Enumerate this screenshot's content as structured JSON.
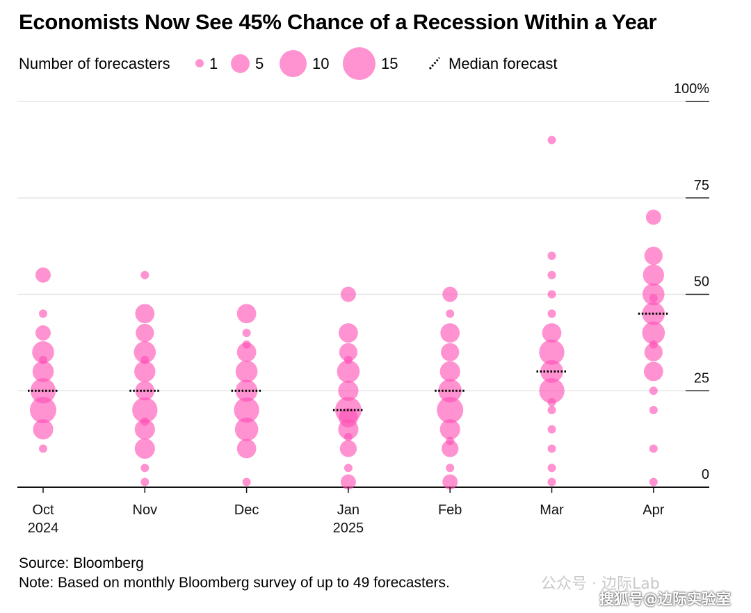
{
  "title": "Economists Now See 45% Chance of a Recession Within a Year",
  "legend": {
    "size_label": "Number of forecasters",
    "sizes": [
      {
        "value": 1,
        "label": "1"
      },
      {
        "value": 5,
        "label": "5"
      },
      {
        "value": 10,
        "label": "10"
      },
      {
        "value": 15,
        "label": "15"
      }
    ],
    "median_label": "Median forecast"
  },
  "colors": {
    "bubble": "#ff4fb4",
    "grid": "#e6e6e6",
    "median": "#000000"
  },
  "source": "Source: Bloomberg",
  "note": "Note: Based on monthly Bloomberg survey of up to 49 forecasters.",
  "watermark": {
    "line1": "公众号 · 边际Lab",
    "line2": "搜狐号@边际实验室"
  },
  "chart_data": {
    "type": "scatter",
    "y_axis": {
      "ticks": [
        0,
        25,
        50,
        75,
        100
      ],
      "tick_labels": [
        "0",
        "25",
        "50",
        "75",
        "100%"
      ],
      "ylim": [
        0,
        100
      ],
      "position": "right"
    },
    "x_axis": {
      "categories": [
        {
          "month": "Oct",
          "year": "2024"
        },
        {
          "month": "Nov",
          "year": ""
        },
        {
          "month": "Dec",
          "year": ""
        },
        {
          "month": "Jan",
          "year": "2025"
        },
        {
          "month": "Feb",
          "year": ""
        },
        {
          "month": "Mar",
          "year": ""
        },
        {
          "month": "Apr",
          "year": ""
        }
      ]
    },
    "grid": true,
    "series": [
      {
        "month": "Oct",
        "median": 25,
        "points": [
          {
            "y": 10,
            "n": 1
          },
          {
            "y": 15,
            "n": 6
          },
          {
            "y": 20,
            "n": 15
          },
          {
            "y": 25,
            "n": 13
          },
          {
            "y": 30,
            "n": 7
          },
          {
            "y": 33,
            "n": 1
          },
          {
            "y": 35,
            "n": 8
          },
          {
            "y": 40,
            "n": 2
          },
          {
            "y": 45,
            "n": 1
          },
          {
            "y": 55,
            "n": 2
          }
        ]
      },
      {
        "month": "Nov",
        "median": 25,
        "points": [
          {
            "y": 1,
            "n": 1
          },
          {
            "y": 5,
            "n": 1
          },
          {
            "y": 10,
            "n": 6
          },
          {
            "y": 15,
            "n": 6
          },
          {
            "y": 17,
            "n": 1
          },
          {
            "y": 20,
            "n": 13
          },
          {
            "y": 25,
            "n": 5
          },
          {
            "y": 30,
            "n": 7
          },
          {
            "y": 33,
            "n": 1
          },
          {
            "y": 35,
            "n": 8
          },
          {
            "y": 40,
            "n": 4
          },
          {
            "y": 45,
            "n": 5
          },
          {
            "y": 55,
            "n": 1
          }
        ]
      },
      {
        "month": "Dec",
        "median": 25,
        "points": [
          {
            "y": 1,
            "n": 1
          },
          {
            "y": 10,
            "n": 5
          },
          {
            "y": 15,
            "n": 10
          },
          {
            "y": 20,
            "n": 13
          },
          {
            "y": 25,
            "n": 8
          },
          {
            "y": 30,
            "n": 8
          },
          {
            "y": 35,
            "n": 5
          },
          {
            "y": 37,
            "n": 1
          },
          {
            "y": 40,
            "n": 1
          },
          {
            "y": 45,
            "n": 5
          }
        ]
      },
      {
        "month": "Jan",
        "median": 20,
        "points": [
          {
            "y": 1,
            "n": 2
          },
          {
            "y": 5,
            "n": 1
          },
          {
            "y": 10,
            "n": 3
          },
          {
            "y": 13,
            "n": 1
          },
          {
            "y": 15,
            "n": 6
          },
          {
            "y": 18,
            "n": 5
          },
          {
            "y": 20,
            "n": 15
          },
          {
            "y": 25,
            "n": 6
          },
          {
            "y": 30,
            "n": 9
          },
          {
            "y": 33,
            "n": 1
          },
          {
            "y": 35,
            "n": 4
          },
          {
            "y": 40,
            "n": 5
          },
          {
            "y": 50,
            "n": 2
          }
        ]
      },
      {
        "month": "Feb",
        "median": 25,
        "points": [
          {
            "y": 1,
            "n": 2
          },
          {
            "y": 5,
            "n": 1
          },
          {
            "y": 10,
            "n": 3
          },
          {
            "y": 12,
            "n": 1
          },
          {
            "y": 15,
            "n": 6
          },
          {
            "y": 20,
            "n": 15
          },
          {
            "y": 25,
            "n": 10
          },
          {
            "y": 30,
            "n": 6
          },
          {
            "y": 35,
            "n": 4
          },
          {
            "y": 40,
            "n": 5
          },
          {
            "y": 45,
            "n": 1
          },
          {
            "y": 50,
            "n": 2
          }
        ]
      },
      {
        "month": "Mar",
        "median": 30,
        "points": [
          {
            "y": 1,
            "n": 1
          },
          {
            "y": 5,
            "n": 1
          },
          {
            "y": 10,
            "n": 1
          },
          {
            "y": 15,
            "n": 1
          },
          {
            "y": 20,
            "n": 1
          },
          {
            "y": 22,
            "n": 1
          },
          {
            "y": 25,
            "n": 13
          },
          {
            "y": 30,
            "n": 9
          },
          {
            "y": 35,
            "n": 13
          },
          {
            "y": 40,
            "n": 5
          },
          {
            "y": 45,
            "n": 1
          },
          {
            "y": 50,
            "n": 1
          },
          {
            "y": 55,
            "n": 1
          },
          {
            "y": 60,
            "n": 1
          },
          {
            "y": 90,
            "n": 1
          }
        ]
      },
      {
        "month": "Apr",
        "median": 45,
        "points": [
          {
            "y": 1,
            "n": 1
          },
          {
            "y": 10,
            "n": 1
          },
          {
            "y": 20,
            "n": 1
          },
          {
            "y": 25,
            "n": 1
          },
          {
            "y": 30,
            "n": 5
          },
          {
            "y": 35,
            "n": 4
          },
          {
            "y": 37,
            "n": 1
          },
          {
            "y": 40,
            "n": 9
          },
          {
            "y": 45,
            "n": 9
          },
          {
            "y": 49,
            "n": 1
          },
          {
            "y": 50,
            "n": 8
          },
          {
            "y": 55,
            "n": 7
          },
          {
            "y": 60,
            "n": 4
          },
          {
            "y": 70,
            "n": 2
          }
        ]
      }
    ]
  }
}
